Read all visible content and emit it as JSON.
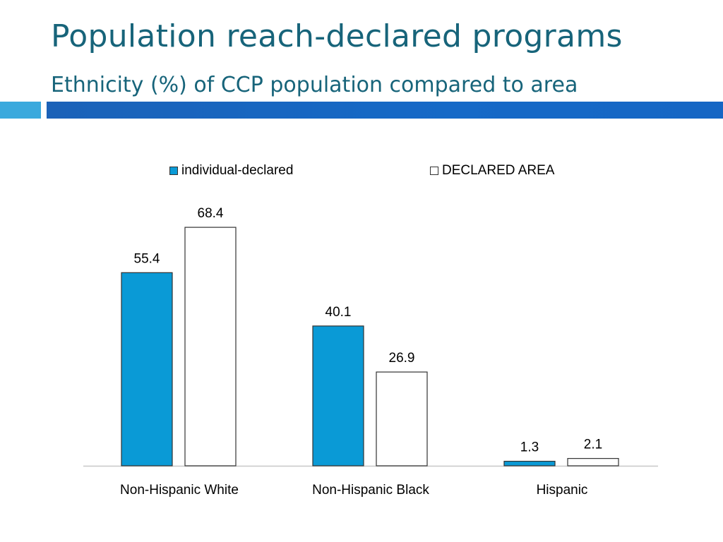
{
  "slide": {
    "title": "Population reach-declared programs",
    "subtitle": "Ethnicity (%) of CCP population compared to area"
  },
  "colors": {
    "title": "#17647a",
    "accent_bar_left": "#3aa9dd",
    "accent_bar_right": "#1569c7",
    "series_individual": "#0a9ad6",
    "series_area": "#ffffff",
    "bar_outline": "#333333"
  },
  "chart_data": {
    "type": "bar",
    "categories": [
      "Non-Hispanic White",
      "Non-Hispanic Black",
      "Hispanic"
    ],
    "series": [
      {
        "name": "individual-declared",
        "values": [
          55.4,
          40.1,
          1.3
        ]
      },
      {
        "name": "DECLARED AREA",
        "values": [
          68.4,
          26.9,
          2.1
        ]
      }
    ],
    "data_labels": [
      [
        "55.4",
        "40.1",
        "1.3"
      ],
      [
        "68.4",
        "26.9",
        "2.1"
      ]
    ],
    "legend_position": "top",
    "grid": false,
    "ylim": [
      0,
      75
    ]
  }
}
